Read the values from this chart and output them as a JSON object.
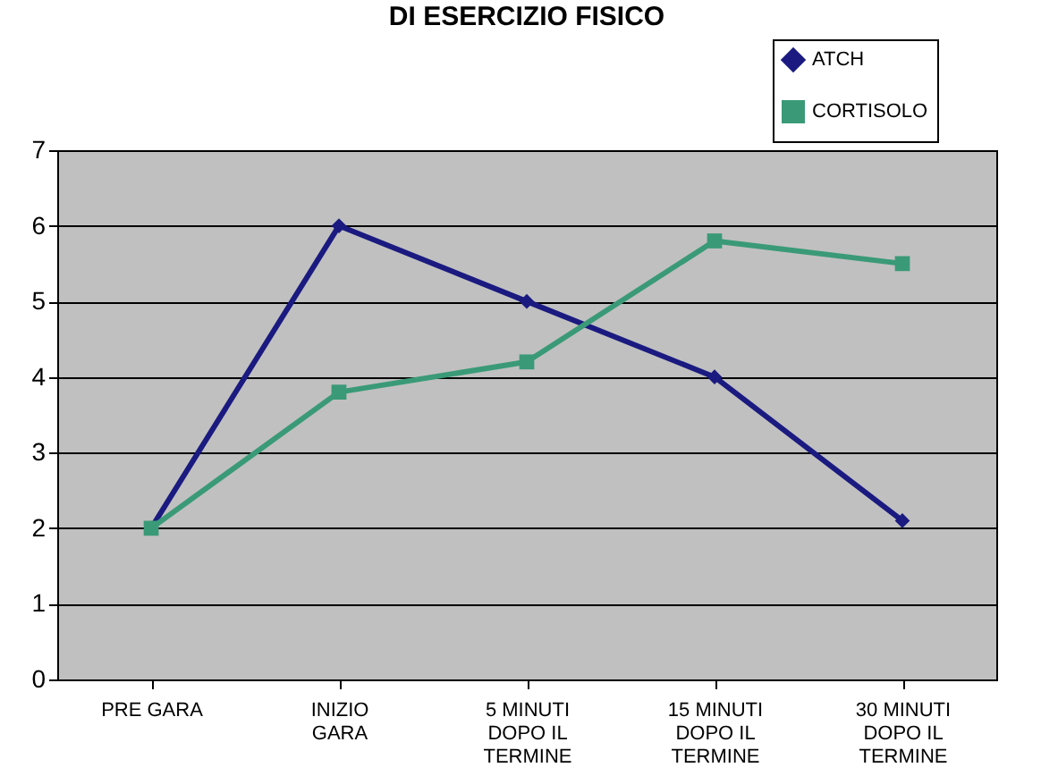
{
  "chart_data": {
    "type": "line",
    "title": "DI ESERCIZIO FISICO",
    "categories": [
      "PRE GARA",
      "INIZIO GARA",
      "5 MINUTI DOPO IL TERMINE",
      "15 MINUTI DOPO IL TERMINE",
      "30 MINUTI DOPO IL TERMINE"
    ],
    "series": [
      {
        "name": "ATCH",
        "color": "#1a1a80",
        "marker": "diamond",
        "values": [
          2,
          6,
          5,
          4,
          2.1
        ]
      },
      {
        "name": "CORTISOLO",
        "color": "#3a9a78",
        "marker": "square",
        "values": [
          2,
          3.8,
          4.2,
          5.8,
          5.5
        ]
      }
    ],
    "ylim": [
      0,
      7
    ],
    "yticks": [
      0,
      1,
      2,
      3,
      4,
      5,
      6,
      7
    ],
    "grid": "y",
    "legend": "top right",
    "line_style": "solid"
  }
}
